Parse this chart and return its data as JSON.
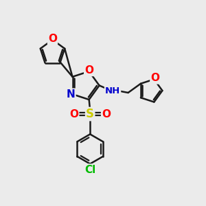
{
  "bg_color": "#ebebeb",
  "bond_color": "#1a1a1a",
  "bond_width": 1.8,
  "atom_colors": {
    "O": "#ff0000",
    "N": "#0000cd",
    "S": "#cccc00",
    "Cl": "#00bb00",
    "C": "#1a1a1a"
  },
  "font_size": 10,
  "figsize": [
    3.0,
    3.0
  ],
  "dpi": 100
}
